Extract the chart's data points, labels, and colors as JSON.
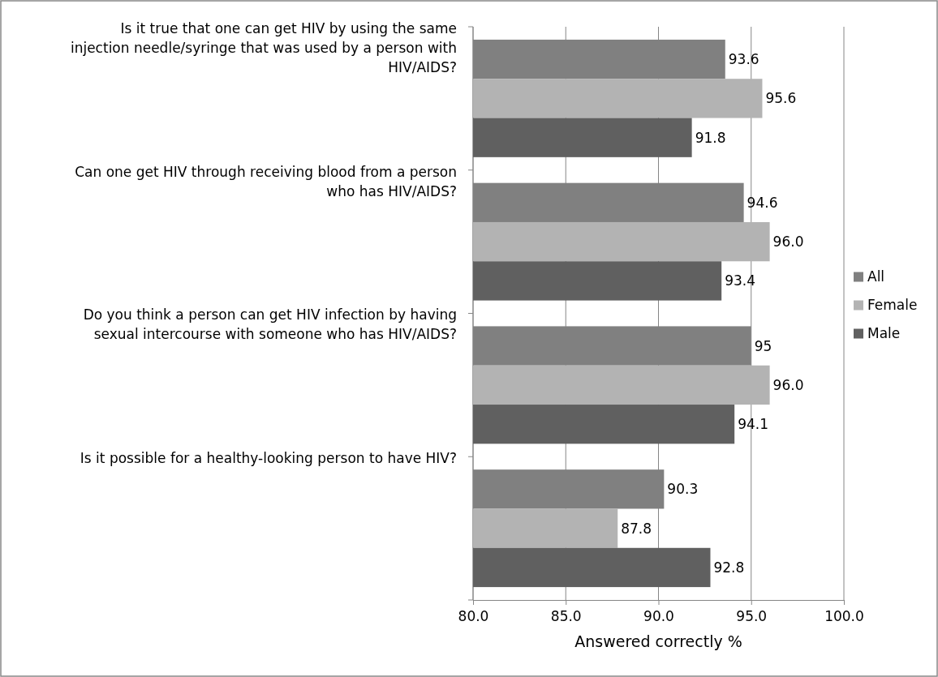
{
  "chart_data": {
    "type": "bar",
    "orientation": "horizontal",
    "xlabel": "Answered correctly %",
    "categories": [
      "Is it true that one can get HIV by using the same injection needle/syringe that was used by a person with HIV/AIDS?",
      "Can one get HIV through receiving blood from a person who has HIV/AIDS?",
      "Do you think a person can get HIV infection by having sexual intercourse with someone who has HIV/AIDS?",
      "Is it possible for a healthy-looking person to have HIV?"
    ],
    "series": [
      {
        "name": "All",
        "color": "#808080",
        "values": [
          93.6,
          94.6,
          95,
          90.3
        ],
        "value_labels": [
          "93.6",
          "94.6",
          "95",
          "90.3"
        ]
      },
      {
        "name": "Female",
        "color": "#b3b3b3",
        "values": [
          95.6,
          96.0,
          96.0,
          87.8
        ],
        "value_labels": [
          "95.6",
          "96.0",
          "96.0",
          "87.8"
        ]
      },
      {
        "name": "Male",
        "color": "#606060",
        "values": [
          91.8,
          93.4,
          94.1,
          92.8
        ],
        "value_labels": [
          "91.8",
          "93.4",
          "94.1",
          "92.8"
        ]
      }
    ],
    "xlim": [
      80,
      100
    ],
    "xticks": [
      {
        "value": 80,
        "label": "80.0"
      },
      {
        "value": 85,
        "label": "85.0"
      },
      {
        "value": 90,
        "label": "90.0"
      },
      {
        "value": 95,
        "label": "95.0"
      },
      {
        "value": 100,
        "label": "100.0"
      }
    ],
    "grid": "x",
    "legend": "right"
  }
}
